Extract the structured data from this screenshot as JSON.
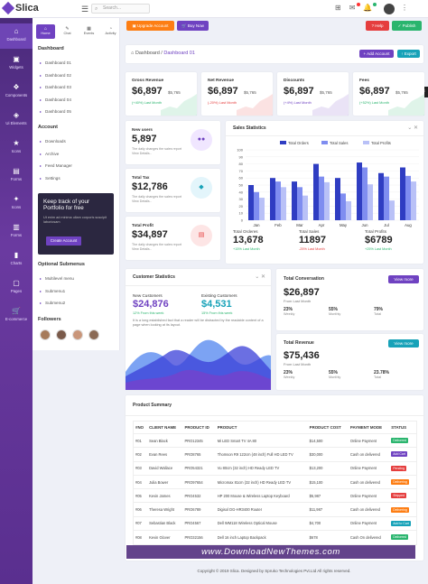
{
  "app": {
    "brand": "Slica",
    "search_placeholder": "Search..."
  },
  "topbar": {
    "icons": [
      "grid-icon",
      "mail-icon",
      "bell-icon",
      "bars-icon"
    ],
    "more": "⋮"
  },
  "sidebar": {
    "items": [
      {
        "label": "Dashboard",
        "icon": "home-icon"
      },
      {
        "label": "Widgets",
        "icon": "widget-icon"
      },
      {
        "label": "Components",
        "icon": "components-icon"
      },
      {
        "label": "Ui Elements",
        "icon": "ui-icon"
      },
      {
        "label": "Icons",
        "icon": "icons-icon"
      },
      {
        "label": "Forms",
        "icon": "forms-icon"
      },
      {
        "label": "Icons",
        "icon": "icons2-icon"
      },
      {
        "label": "Forms",
        "icon": "forms2-icon"
      },
      {
        "label": "Charts",
        "icon": "charts-icon"
      },
      {
        "label": "Pages",
        "icon": "pages-icon"
      },
      {
        "label": "E-commerce",
        "icon": "cart-icon"
      }
    ]
  },
  "panel": {
    "tabs": [
      {
        "label": "Home"
      },
      {
        "label": "Chat"
      },
      {
        "label": "Events"
      },
      {
        "label": "Activity"
      }
    ],
    "dashboard_heading": "Dashboard",
    "dashboards": [
      "Dashboard 01",
      "Dashboard 02",
      "Dashboard 03",
      "Dashboard 04",
      "Dashboard 05"
    ],
    "account_heading": "Account",
    "account_items": [
      "Downloads",
      "Archive",
      "Feed Manager",
      "Settings"
    ],
    "cta": {
      "title": "Keep track of your Portfolio for free",
      "text": "Ut enim ad minima ullam corporis suscipit laboriosam",
      "button": "Create Account"
    },
    "optional_heading": "Optional Submenus",
    "optional_items": [
      "Multilevel menu",
      "Submenu1",
      "Submenu2"
    ],
    "followers_heading": "Followers"
  },
  "header_buttons": {
    "upgrade": "Upgrade Account",
    "buy": "Buy Now",
    "help": "Help",
    "publish": "Publish"
  },
  "breadcrumb": {
    "home": "Dashboard",
    "current": "Dashboard 01"
  },
  "page_actions": {
    "add": "Add Account",
    "export": "Export"
  },
  "stats": [
    {
      "title": "Gross Revenue",
      "value": "$6,897",
      "sub": "$5,765",
      "change": "(+40%) Last Month",
      "color": "#2ab56e"
    },
    {
      "title": "Net Revenue",
      "value": "$6,897",
      "sub": "$5,765",
      "change": "(-20%) Last Month",
      "color": "#e53e3e"
    },
    {
      "title": "Discounts",
      "value": "$6,897",
      "sub": "$5,765",
      "change": "(+4%) Last Month",
      "color": "#6f42c1"
    },
    {
      "title": "Fees",
      "value": "$6,897",
      "sub": "$5,765",
      "change": "(+52%) Last Month",
      "color": "#2ab56e"
    }
  ],
  "mini_stats": [
    {
      "title": "New users",
      "value": "5,897",
      "text": "The daily changes the sales report View Details..",
      "icon": "users-icon"
    },
    {
      "title": "Total Tax",
      "value": "$12,786",
      "text": "The daily changes the sales report View Details..",
      "icon": "box-icon"
    },
    {
      "title": "Total Profit",
      "value": "$34,897",
      "text": "The daily changes the sales report View Details..",
      "icon": "chart-icon"
    }
  ],
  "sales": {
    "title": "Sales Statistics",
    "legend": [
      "Total Orders",
      "Total Sales",
      "Total Profits"
    ],
    "summary": [
      {
        "label": "Total Orderes",
        "value": "13,678",
        "change": "+15% Last Month"
      },
      {
        "label": "Total Sales",
        "value": "11897",
        "change": "-25% Last Month"
      },
      {
        "label": "Total Profits",
        "value": "$6789",
        "change": "+25% Last Month"
      }
    ]
  },
  "chart_data": {
    "type": "bar",
    "categories": [
      "Jan",
      "Feb",
      "Mar",
      "Apr",
      "May",
      "Jun",
      "Jul",
      "Aug"
    ],
    "series": [
      {
        "name": "Total Orders",
        "values": [
          50,
          60,
          55,
          80,
          60,
          82,
          67,
          75
        ]
      },
      {
        "name": "Total Sales",
        "values": [
          40,
          55,
          47,
          62,
          38,
          75,
          62,
          63
        ]
      },
      {
        "name": "Total Profits",
        "values": [
          32,
          47,
          35,
          54,
          27,
          51,
          28,
          55
        ]
      }
    ],
    "ylim": [
      0,
      100
    ],
    "yticks": [
      0,
      10,
      20,
      30,
      40,
      50,
      60,
      70,
      80,
      90,
      100
    ],
    "colors": [
      "#2f3dc2",
      "#7f8df0",
      "#b9c1f7"
    ]
  },
  "customer": {
    "title": "Customer Statistics",
    "new_label": "New Customers",
    "new_value": "$24,876",
    "new_change": "12% From this week",
    "existing_label": "Existing Customers",
    "existing_value": "$4,531",
    "existing_change": "15% From this week",
    "text": "It is a long established fact that a reader will be distracted by the readable content of a page when looking at its layout."
  },
  "conversation": {
    "title": "Total Conversation",
    "button": "View more",
    "value": "$26,897",
    "sub": "From Last Month",
    "stats": [
      {
        "v": "23%",
        "l": "Weekly"
      },
      {
        "v": "55%",
        "l": "Monthly"
      },
      {
        "v": "79%",
        "l": "Total"
      }
    ]
  },
  "revenue": {
    "title": "Total Revenue",
    "button": "View more",
    "value": "$75,436",
    "sub": "From Last Month",
    "stats": [
      {
        "v": "23%",
        "l": "Weekly"
      },
      {
        "v": "55%",
        "l": "Monthly"
      },
      {
        "v": "23.78%",
        "l": "Total"
      }
    ]
  },
  "product_summary": {
    "title": "Product Summary",
    "columns": [
      "#NO",
      "CLIENT NAME",
      "PRODUCT ID",
      "PRODUCT",
      "PRODUCT COST",
      "PAYMENT MODE",
      "STATUS"
    ],
    "rows": [
      [
        "#01",
        "Sean Black",
        "PRO12345",
        "Mi LED Smart TV 4A 80",
        "$14,500",
        "Online Payment",
        "Delivered"
      ],
      [
        "#02",
        "Evan Rees",
        "PRO8765",
        "Thomson R9 122cm (48 inch) Full HD LED TV",
        "$30,000",
        "Cash on delivered",
        "Add Cart"
      ],
      [
        "#03",
        "David Wallace",
        "PRO54321",
        "Vu 80cm (32 inch) HD Ready LED TV",
        "$13,200",
        "Online Payment",
        "Pending"
      ],
      [
        "#04",
        "Julia Bower",
        "PRO97654",
        "Micromax 81cm (32 inch) HD Ready LED TV",
        "$15,100",
        "Cash on delivered",
        "Delivering"
      ],
      [
        "#05",
        "Kevin James",
        "PRO4532",
        "HP 200 Mouse & Wireless Laptop Keyboard",
        "$5,987",
        "Online Payment",
        "Shipped"
      ],
      [
        "#06",
        "Theresa Wright",
        "PRO6789",
        "Digisol DG-HR3400 Router",
        "$11,987",
        "Cash on delivered",
        "Delivering"
      ],
      [
        "#07",
        "Sebastian Black",
        "PRO4567",
        "Dell WM118 Wireless Optical Mouse",
        "$4,700",
        "Online Payment",
        "Add to Cart"
      ],
      [
        "#08",
        "Kevin Glover",
        "PRO32156",
        "Dell 16 inch Laptop Backpack",
        "$678",
        "Cash On delivered",
        "Delivered"
      ]
    ],
    "status_colors": {
      "Delivered": "#2ab56e",
      "Add Cart": "#6f42c1",
      "Pending": "#e53e3e",
      "Delivering": "#fd7e14",
      "Shipped": "#e53e3e",
      "Add to Cart": "#17a2b8"
    }
  },
  "watermark": "www.DownloadNewThemes.com",
  "footer": "Copyright © 2019 Slica. Designed by Spruko Technologies Pvt.Ltd All rights reserved."
}
